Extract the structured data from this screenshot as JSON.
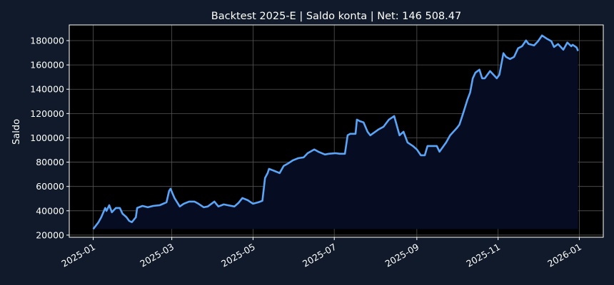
{
  "chart_data": {
    "type": "area",
    "title": "Backtest 2025-E | Saldo konta | Net: 146 508.47",
    "xlabel": "",
    "ylabel": "Saldo",
    "xlim": [
      "2024-12-14",
      "2026-01-19"
    ],
    "ylim": [
      18200,
      192900
    ],
    "baseline": 25000,
    "grid": true,
    "x_ticks": [
      "2025-01",
      "2025-03",
      "2025-05",
      "2025-07",
      "2025-09",
      "2025-11",
      "2026-01"
    ],
    "y_ticks": [
      20000,
      40000,
      60000,
      80000,
      100000,
      120000,
      140000,
      160000,
      180000
    ],
    "colors": {
      "line": "#5aa5f7",
      "fill": "#060d22",
      "plot_bg": "#000000",
      "page_bg": "#111a2b",
      "grid": "#555555"
    },
    "points": [
      [
        "2025-01-01",
        25000
      ],
      [
        "2025-01-05",
        30600
      ],
      [
        "2025-01-07",
        34700
      ],
      [
        "2025-01-10",
        42300
      ],
      [
        "2025-01-11",
        39900
      ],
      [
        "2025-01-13",
        44600
      ],
      [
        "2025-01-15",
        38800
      ],
      [
        "2025-01-18",
        42300
      ],
      [
        "2025-01-21",
        42300
      ],
      [
        "2025-01-23",
        37600
      ],
      [
        "2025-01-26",
        34700
      ],
      [
        "2025-01-28",
        31700
      ],
      [
        "2025-01-30",
        30600
      ],
      [
        "2025-02-02",
        34700
      ],
      [
        "2025-02-03",
        42300
      ],
      [
        "2025-02-07",
        44000
      ],
      [
        "2025-02-11",
        42900
      ],
      [
        "2025-02-15",
        44000
      ],
      [
        "2025-02-20",
        44600
      ],
      [
        "2025-02-25",
        47000
      ],
      [
        "2025-02-27",
        56400
      ],
      [
        "2025-02-28",
        58100
      ],
      [
        "2025-03-03",
        50500
      ],
      [
        "2025-03-07",
        43500
      ],
      [
        "2025-03-10",
        45800
      ],
      [
        "2025-03-14",
        47600
      ],
      [
        "2025-03-18",
        47600
      ],
      [
        "2025-03-21",
        45800
      ],
      [
        "2025-03-25",
        42900
      ],
      [
        "2025-03-28",
        43500
      ],
      [
        "2025-04-02",
        47600
      ],
      [
        "2025-04-05",
        43500
      ],
      [
        "2025-04-09",
        45200
      ],
      [
        "2025-04-12",
        44600
      ],
      [
        "2025-04-17",
        43500
      ],
      [
        "2025-04-20",
        46400
      ],
      [
        "2025-04-23",
        50500
      ],
      [
        "2025-04-27",
        48700
      ],
      [
        "2025-05-01",
        45800
      ],
      [
        "2025-05-05",
        47000
      ],
      [
        "2025-05-08",
        48200
      ],
      [
        "2025-05-10",
        66900
      ],
      [
        "2025-05-12",
        71000
      ],
      [
        "2025-05-13",
        74500
      ],
      [
        "2025-05-17",
        72800
      ],
      [
        "2025-05-21",
        71000
      ],
      [
        "2025-05-24",
        76900
      ],
      [
        "2025-05-27",
        78700
      ],
      [
        "2025-05-31",
        81600
      ],
      [
        "2025-06-04",
        83300
      ],
      [
        "2025-06-08",
        83900
      ],
      [
        "2025-06-11",
        87400
      ],
      [
        "2025-06-16",
        90400
      ],
      [
        "2025-06-19",
        88600
      ],
      [
        "2025-06-24",
        86300
      ],
      [
        "2025-06-27",
        86900
      ],
      [
        "2025-07-02",
        87400
      ],
      [
        "2025-07-05",
        86900
      ],
      [
        "2025-07-09",
        86900
      ],
      [
        "2025-07-11",
        102100
      ],
      [
        "2025-07-13",
        103300
      ],
      [
        "2025-07-17",
        103300
      ],
      [
        "2025-07-18",
        115000
      ],
      [
        "2025-07-20",
        113800
      ],
      [
        "2025-07-23",
        112700
      ],
      [
        "2025-07-26",
        105000
      ],
      [
        "2025-07-28",
        102100
      ],
      [
        "2025-08-03",
        106800
      ],
      [
        "2025-08-07",
        109100
      ],
      [
        "2025-08-11",
        115000
      ],
      [
        "2025-08-15",
        117900
      ],
      [
        "2025-08-19",
        102100
      ],
      [
        "2025-08-22",
        105000
      ],
      [
        "2025-08-25",
        96200
      ],
      [
        "2025-08-29",
        93300
      ],
      [
        "2025-09-01",
        90400
      ],
      [
        "2025-09-04",
        85700
      ],
      [
        "2025-09-07",
        85700
      ],
      [
        "2025-09-09",
        93300
      ],
      [
        "2025-09-13",
        93300
      ],
      [
        "2025-09-16",
        93300
      ],
      [
        "2025-09-18",
        88600
      ],
      [
        "2025-09-23",
        96200
      ],
      [
        "2025-09-26",
        102100
      ],
      [
        "2025-10-01",
        108000
      ],
      [
        "2025-10-03",
        110900
      ],
      [
        "2025-10-06",
        120900
      ],
      [
        "2025-10-09",
        131400
      ],
      [
        "2025-10-11",
        137300
      ],
      [
        "2025-10-13",
        149000
      ],
      [
        "2025-10-15",
        153700
      ],
      [
        "2025-10-18",
        156100
      ],
      [
        "2025-10-20",
        149000
      ],
      [
        "2025-10-22",
        149000
      ],
      [
        "2025-10-26",
        154900
      ],
      [
        "2025-10-29",
        151400
      ],
      [
        "2025-10-31",
        149000
      ],
      [
        "2025-11-02",
        152000
      ],
      [
        "2025-11-05",
        169600
      ],
      [
        "2025-11-07",
        166600
      ],
      [
        "2025-11-10",
        164900
      ],
      [
        "2025-11-13",
        166600
      ],
      [
        "2025-11-16",
        173700
      ],
      [
        "2025-11-19",
        175400
      ],
      [
        "2025-11-22",
        180100
      ],
      [
        "2025-11-24",
        177200
      ],
      [
        "2025-11-28",
        176000
      ],
      [
        "2025-12-01",
        179500
      ],
      [
        "2025-12-04",
        184200
      ],
      [
        "2025-12-08",
        181300
      ],
      [
        "2025-12-11",
        179500
      ],
      [
        "2025-12-13",
        174800
      ],
      [
        "2025-12-16",
        177200
      ],
      [
        "2025-12-20",
        172500
      ],
      [
        "2025-12-23",
        178400
      ],
      [
        "2025-12-26",
        175400
      ],
      [
        "2025-12-27",
        176600
      ],
      [
        "2025-12-30",
        174300
      ],
      [
        "2025-12-31",
        171508.47
      ]
    ]
  }
}
